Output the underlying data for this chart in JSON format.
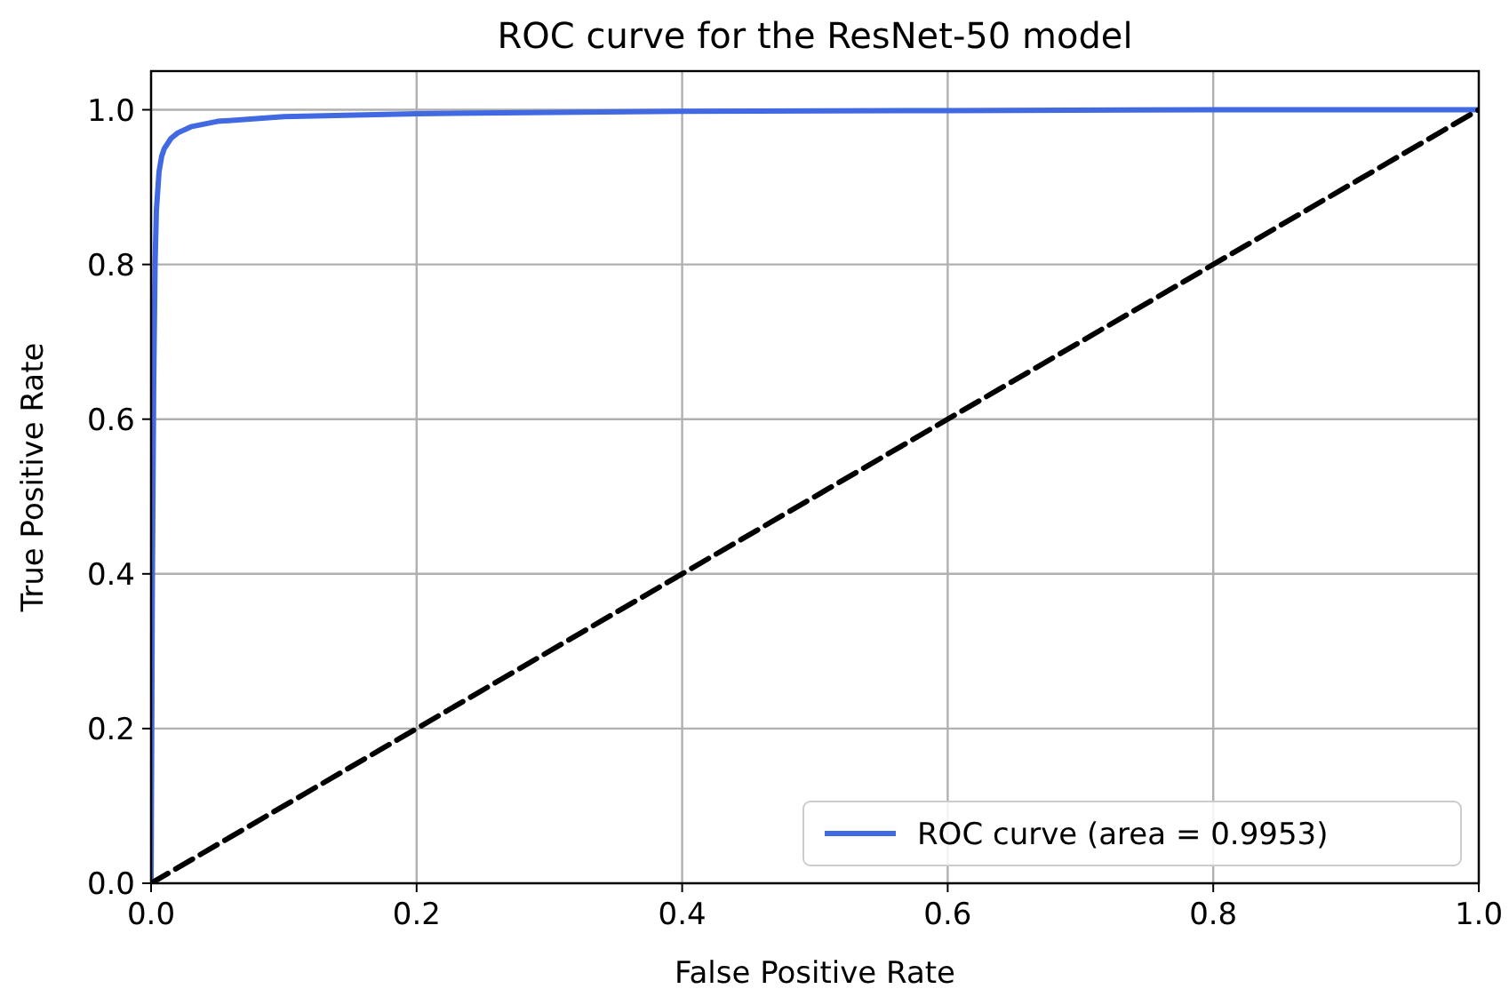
{
  "chart_data": {
    "type": "line",
    "title": "ROC curve for the ResNet-50 model",
    "xlabel": "False Positive Rate",
    "ylabel": "True Positive Rate",
    "xlim": [
      0,
      1
    ],
    "ylim": [
      0,
      1.05
    ],
    "xticks": [
      {
        "value": 0,
        "label": "0.0"
      },
      {
        "value": 0.2,
        "label": "0.2"
      },
      {
        "value": 0.4,
        "label": "0.4"
      },
      {
        "value": 0.6,
        "label": "0.6"
      },
      {
        "value": 0.8,
        "label": "0.8"
      },
      {
        "value": 1,
        "label": "1.0"
      }
    ],
    "yticks": [
      {
        "value": 0,
        "label": "0.0"
      },
      {
        "value": 0.2,
        "label": "0.2"
      },
      {
        "value": 0.4,
        "label": "0.4"
      },
      {
        "value": 0.6,
        "label": "0.6"
      },
      {
        "value": 0.8,
        "label": "0.8"
      },
      {
        "value": 1,
        "label": "1.0"
      }
    ],
    "grid": true,
    "legend": "bottom right",
    "series": [
      {
        "name": "ROC curve (area = 0.9953)",
        "color": "#4169e1",
        "line_style": "solid",
        "x": [
          0,
          0.001,
          0.002,
          0.003,
          0.004,
          0.006,
          0.008,
          0.01,
          0.015,
          0.02,
          0.03,
          0.05,
          0.1,
          0.2,
          0.4,
          0.6,
          0.8,
          1
        ],
        "values": [
          0,
          0.4,
          0.65,
          0.8,
          0.87,
          0.92,
          0.94,
          0.95,
          0.963,
          0.97,
          0.978,
          0.985,
          0.991,
          0.995,
          0.998,
          0.999,
          1,
          1
        ]
      },
      {
        "color": "#000000",
        "line_style": "dashed",
        "x": [
          0,
          1
        ],
        "values": [
          0,
          1
        ]
      }
    ]
  }
}
